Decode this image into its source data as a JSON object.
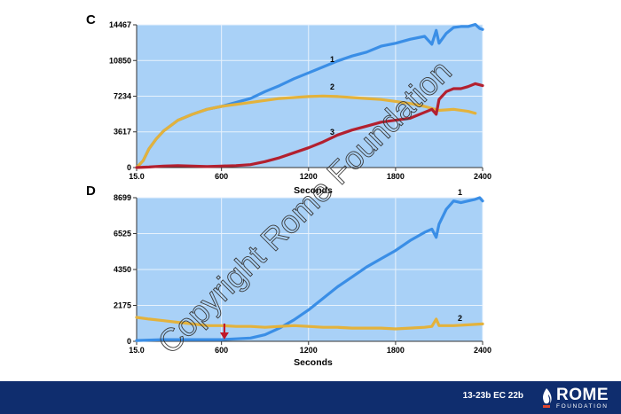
{
  "chart_data": [
    {
      "type": "line",
      "panel_label": "C",
      "xlabel": "Seconds",
      "ylabel": "",
      "xlim": [
        15.0,
        2400
      ],
      "ylim": [
        0,
        14467
      ],
      "x_ticks": [
        "15.0",
        "600",
        "1200",
        "1800",
        "2400"
      ],
      "x_tick_values": [
        15,
        600,
        1200,
        1800,
        2400
      ],
      "y_ticks": [
        "0",
        "3617",
        "7234",
        "10850",
        "14467"
      ],
      "y_tick_values": [
        0,
        3617,
        7234,
        10850,
        14467
      ],
      "grid": true,
      "series": [
        {
          "name": "1",
          "color": "#3a8ee6",
          "x": [
            15,
            60,
            100,
            150,
            200,
            300,
            400,
            500,
            600,
            700,
            800,
            900,
            1000,
            1100,
            1200,
            1300,
            1400,
            1500,
            1600,
            1700,
            1800,
            1900,
            2000,
            2050,
            2080,
            2100,
            2150,
            2200,
            2250,
            2300,
            2350,
            2380,
            2400
          ],
          "y": [
            0,
            700,
            1900,
            2900,
            3700,
            4800,
            5400,
            5900,
            6200,
            6600,
            7000,
            7700,
            8300,
            9000,
            9600,
            10200,
            10800,
            11300,
            11700,
            12300,
            12600,
            13000,
            13300,
            12500,
            13900,
            12600,
            13600,
            14200,
            14300,
            14300,
            14500,
            14100,
            14000
          ]
        },
        {
          "name": "2",
          "color": "#e3b23c",
          "x": [
            15,
            60,
            100,
            150,
            200,
            300,
            400,
            500,
            600,
            700,
            800,
            900,
            1000,
            1100,
            1200,
            1300,
            1400,
            1500,
            1600,
            1700,
            1800,
            1900,
            2000,
            2100,
            2200,
            2300,
            2350
          ],
          "y": [
            0,
            700,
            1900,
            2900,
            3700,
            4800,
            5400,
            5900,
            6200,
            6400,
            6600,
            6800,
            7000,
            7100,
            7200,
            7250,
            7200,
            7100,
            7000,
            6900,
            6700,
            6500,
            6200,
            5800,
            5900,
            5700,
            5500
          ]
        },
        {
          "name": "3",
          "color": "#b3202f",
          "x": [
            15,
            100,
            200,
            300,
            400,
            500,
            600,
            700,
            800,
            900,
            1000,
            1100,
            1200,
            1300,
            1400,
            1500,
            1600,
            1700,
            1800,
            1900,
            2000,
            2050,
            2080,
            2100,
            2150,
            2200,
            2250,
            2300,
            2350,
            2400
          ],
          "y": [
            0,
            50,
            150,
            200,
            150,
            100,
            150,
            200,
            300,
            600,
            1000,
            1500,
            2000,
            2600,
            3300,
            3800,
            4200,
            4600,
            4800,
            5000,
            5600,
            5900,
            5400,
            6900,
            7700,
            8000,
            8000,
            8200,
            8500,
            8300
          ]
        }
      ]
    },
    {
      "type": "line",
      "panel_label": "D",
      "xlabel": "Seconds",
      "ylabel": "",
      "xlim": [
        15.0,
        2400
      ],
      "ylim": [
        0,
        8699
      ],
      "x_ticks": [
        "15.0",
        "600",
        "1200",
        "1800",
        "2400"
      ],
      "x_tick_values": [
        15,
        600,
        1200,
        1800,
        2400
      ],
      "y_ticks": [
        "0",
        "2175",
        "4350",
        "6525",
        "8699"
      ],
      "y_tick_values": [
        0,
        2175,
        4350,
        6525,
        8699
      ],
      "grid": true,
      "annotation_arrow_x": 620,
      "series": [
        {
          "name": "1",
          "color": "#3a8ee6",
          "x": [
            15,
            200,
            400,
            600,
            700,
            800,
            900,
            1000,
            1100,
            1200,
            1300,
            1400,
            1500,
            1600,
            1700,
            1800,
            1900,
            2000,
            2050,
            2080,
            2100,
            2150,
            2200,
            2250,
            2300,
            2350,
            2380,
            2400
          ],
          "y": [
            50,
            100,
            100,
            100,
            150,
            200,
            400,
            800,
            1300,
            1900,
            2600,
            3300,
            3900,
            4500,
            5000,
            5500,
            6100,
            6600,
            6800,
            6300,
            7100,
            8000,
            8500,
            8400,
            8500,
            8600,
            8700,
            8500
          ]
        },
        {
          "name": "2",
          "color": "#e3b23c",
          "x": [
            15,
            100,
            200,
            300,
            400,
            500,
            600,
            700,
            800,
            900,
            1000,
            1100,
            1200,
            1300,
            1400,
            1500,
            1600,
            1700,
            1800,
            1900,
            2000,
            2050,
            2080,
            2100,
            2200,
            2300,
            2400
          ],
          "y": [
            1450,
            1350,
            1250,
            1150,
            1050,
            950,
            950,
            900,
            900,
            850,
            900,
            950,
            900,
            850,
            850,
            800,
            800,
            800,
            750,
            800,
            850,
            900,
            1350,
            950,
            950,
            1000,
            1050
          ]
        }
      ]
    }
  ],
  "watermark": "Copyright Rome Foundation",
  "footer": {
    "code": "13-23b  EC 22b",
    "logo_word": "ROME",
    "logo_sub": "FOUNDATION"
  }
}
